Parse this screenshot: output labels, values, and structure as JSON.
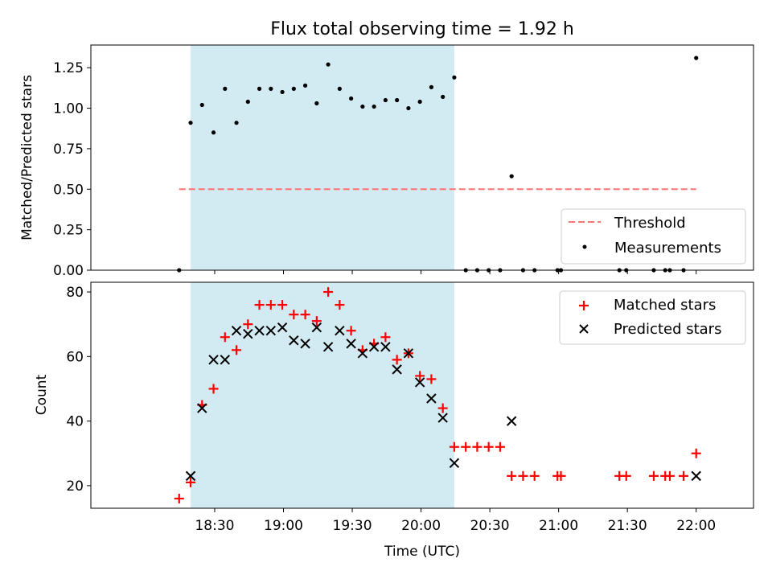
{
  "chart_data": {
    "title": "Flux total observing time = 1.92 h",
    "xlabel": "Time (UTC)",
    "x_unit": "minutes since 18:00 UTC",
    "xlim": [
      -24,
      265
    ],
    "x_ticks": [
      {
        "value": 30,
        "label": "18:30"
      },
      {
        "value": 60,
        "label": "19:00"
      },
      {
        "value": 90,
        "label": "19:30"
      },
      {
        "value": 120,
        "label": "20:00"
      },
      {
        "value": 150,
        "label": "20:30"
      },
      {
        "value": 180,
        "label": "21:00"
      },
      {
        "value": 210,
        "label": "21:30"
      },
      {
        "value": 240,
        "label": "22:00"
      }
    ],
    "shaded_span": {
      "start": 19.5,
      "end": 134.5,
      "color": "#add8e6"
    },
    "top_panel": {
      "type": "scatter",
      "ylabel": "Matched/Predicted stars",
      "ylim": [
        0,
        1.39
      ],
      "y_ticks": [
        "0.00",
        "0.25",
        "0.50",
        "0.75",
        "1.00",
        "1.25"
      ],
      "threshold": {
        "name": "Threshold",
        "value": 0.5,
        "x_start": 14.5,
        "x_end": 240,
        "color": "#ff7373"
      },
      "measurements": {
        "name": "Measurements",
        "color": "#000000",
        "points": [
          {
            "x": 14.5,
            "y": 0.0
          },
          {
            "x": 19.5,
            "y": 0.91
          },
          {
            "x": 24.5,
            "y": 1.02
          },
          {
            "x": 29.5,
            "y": 0.85
          },
          {
            "x": 34.5,
            "y": 1.12
          },
          {
            "x": 39.5,
            "y": 0.91
          },
          {
            "x": 44.5,
            "y": 1.04
          },
          {
            "x": 49.5,
            "y": 1.12
          },
          {
            "x": 54.5,
            "y": 1.12
          },
          {
            "x": 59.5,
            "y": 1.1
          },
          {
            "x": 64.5,
            "y": 1.12
          },
          {
            "x": 69.5,
            "y": 1.14
          },
          {
            "x": 74.5,
            "y": 1.03
          },
          {
            "x": 79.5,
            "y": 1.27
          },
          {
            "x": 84.5,
            "y": 1.12
          },
          {
            "x": 89.5,
            "y": 1.06
          },
          {
            "x": 94.5,
            "y": 1.01
          },
          {
            "x": 99.5,
            "y": 1.01
          },
          {
            "x": 104.5,
            "y": 1.05
          },
          {
            "x": 109.5,
            "y": 1.05
          },
          {
            "x": 114.5,
            "y": 1.0
          },
          {
            "x": 119.5,
            "y": 1.04
          },
          {
            "x": 124.5,
            "y": 1.13
          },
          {
            "x": 129.5,
            "y": 1.07
          },
          {
            "x": 134.5,
            "y": 1.19
          },
          {
            "x": 139.5,
            "y": 0.0
          },
          {
            "x": 144.5,
            "y": 0.0
          },
          {
            "x": 149.5,
            "y": 0.0
          },
          {
            "x": 154.5,
            "y": 0.0
          },
          {
            "x": 159.5,
            "y": 0.58
          },
          {
            "x": 164.5,
            "y": 0.0
          },
          {
            "x": 169.5,
            "y": 0.0
          },
          {
            "x": 179.5,
            "y": 0.0
          },
          {
            "x": 181,
            "y": 0.0
          },
          {
            "x": 206.5,
            "y": 0.0
          },
          {
            "x": 209.5,
            "y": 0.0
          },
          {
            "x": 221.5,
            "y": 0.0
          },
          {
            "x": 226.5,
            "y": 0.0
          },
          {
            "x": 228.5,
            "y": 0.0
          },
          {
            "x": 234.5,
            "y": 0.0
          },
          {
            "x": 240,
            "y": 1.31
          }
        ]
      },
      "legend": [
        "Threshold",
        "Measurements"
      ]
    },
    "bottom_panel": {
      "type": "scatter",
      "ylabel": "Count",
      "ylim": [
        13,
        83
      ],
      "y_ticks": [
        "20",
        "40",
        "60",
        "80"
      ],
      "series": [
        {
          "name": "Matched stars",
          "marker": "plus",
          "color": "#ff0000",
          "points": [
            {
              "x": 14.5,
              "y": 16
            },
            {
              "x": 19.5,
              "y": 21
            },
            {
              "x": 24.5,
              "y": 45
            },
            {
              "x": 29.5,
              "y": 50
            },
            {
              "x": 34.5,
              "y": 66
            },
            {
              "x": 39.5,
              "y": 62
            },
            {
              "x": 44.5,
              "y": 70
            },
            {
              "x": 49.5,
              "y": 76
            },
            {
              "x": 54.5,
              "y": 76
            },
            {
              "x": 59.5,
              "y": 76
            },
            {
              "x": 64.5,
              "y": 73
            },
            {
              "x": 69.5,
              "y": 73
            },
            {
              "x": 74.5,
              "y": 71
            },
            {
              "x": 79.5,
              "y": 80
            },
            {
              "x": 84.5,
              "y": 76
            },
            {
              "x": 89.5,
              "y": 68
            },
            {
              "x": 94.5,
              "y": 62
            },
            {
              "x": 99.5,
              "y": 64
            },
            {
              "x": 104.5,
              "y": 66
            },
            {
              "x": 109.5,
              "y": 59
            },
            {
              "x": 114.5,
              "y": 61
            },
            {
              "x": 119.5,
              "y": 54
            },
            {
              "x": 124.5,
              "y": 53
            },
            {
              "x": 129.5,
              "y": 44
            },
            {
              "x": 134.5,
              "y": 32
            },
            {
              "x": 139.5,
              "y": 32
            },
            {
              "x": 144.5,
              "y": 32
            },
            {
              "x": 149.5,
              "y": 32
            },
            {
              "x": 154.5,
              "y": 32
            },
            {
              "x": 159.5,
              "y": 23
            },
            {
              "x": 164.5,
              "y": 23
            },
            {
              "x": 169.5,
              "y": 23
            },
            {
              "x": 179.5,
              "y": 23
            },
            {
              "x": 181,
              "y": 23
            },
            {
              "x": 206.5,
              "y": 23
            },
            {
              "x": 209.5,
              "y": 23
            },
            {
              "x": 221.5,
              "y": 23
            },
            {
              "x": 226.5,
              "y": 23
            },
            {
              "x": 228.5,
              "y": 23
            },
            {
              "x": 234.5,
              "y": 23
            },
            {
              "x": 240,
              "y": 30
            }
          ]
        },
        {
          "name": "Predicted stars",
          "marker": "x",
          "color": "#000000",
          "points": [
            {
              "x": 19.5,
              "y": 23
            },
            {
              "x": 24.5,
              "y": 44
            },
            {
              "x": 29.5,
              "y": 59
            },
            {
              "x": 34.5,
              "y": 59
            },
            {
              "x": 39.5,
              "y": 68
            },
            {
              "x": 44.5,
              "y": 67
            },
            {
              "x": 49.5,
              "y": 68
            },
            {
              "x": 54.5,
              "y": 68
            },
            {
              "x": 59.5,
              "y": 69
            },
            {
              "x": 64.5,
              "y": 65
            },
            {
              "x": 69.5,
              "y": 64
            },
            {
              "x": 74.5,
              "y": 69
            },
            {
              "x": 79.5,
              "y": 63
            },
            {
              "x": 84.5,
              "y": 68
            },
            {
              "x": 89.5,
              "y": 64
            },
            {
              "x": 94.5,
              "y": 61
            },
            {
              "x": 99.5,
              "y": 63
            },
            {
              "x": 104.5,
              "y": 63
            },
            {
              "x": 109.5,
              "y": 56
            },
            {
              "x": 114.5,
              "y": 61
            },
            {
              "x": 119.5,
              "y": 52
            },
            {
              "x": 124.5,
              "y": 47
            },
            {
              "x": 129.5,
              "y": 41
            },
            {
              "x": 134.5,
              "y": 27
            },
            {
              "x": 159.5,
              "y": 40
            },
            {
              "x": 240,
              "y": 23
            }
          ]
        }
      ],
      "legend": [
        "Matched stars",
        "Predicted stars"
      ]
    }
  }
}
